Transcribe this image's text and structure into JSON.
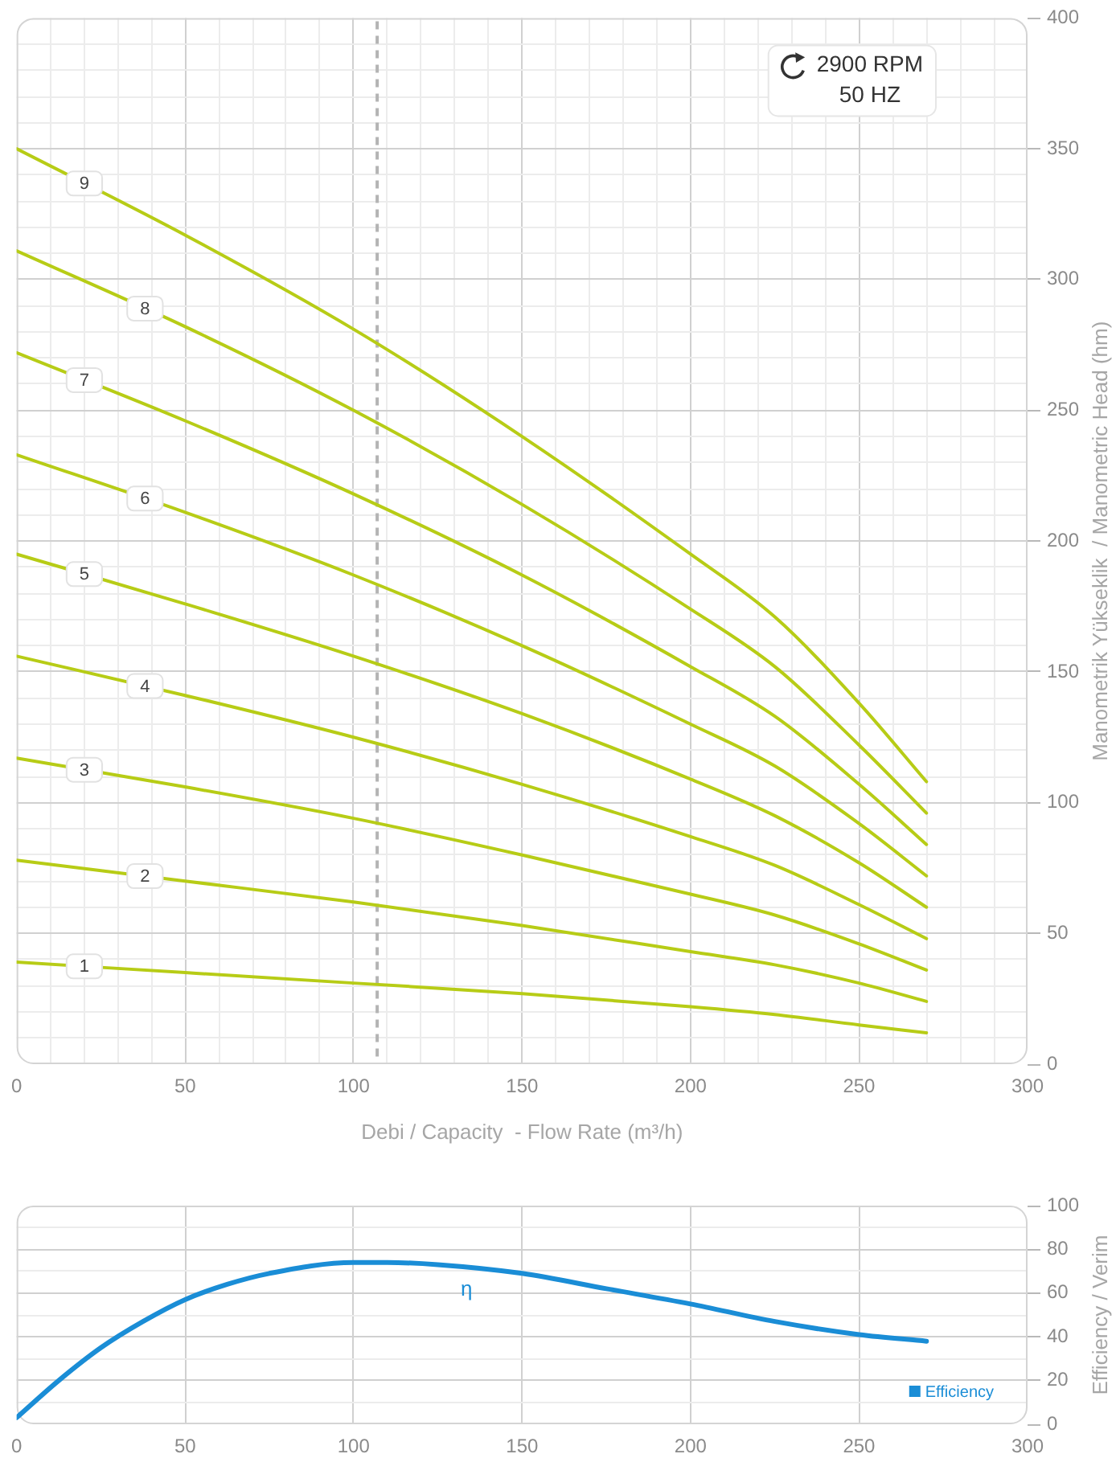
{
  "chart_data": [
    {
      "type": "line",
      "xlabel": "Debi / Capacity  - Flow Rate (m³/h)",
      "ylabel": "Manometrik Yükseklik  / Manometric Head (hm)",
      "x": [
        0,
        50,
        100,
        150,
        200,
        225,
        250,
        270
      ],
      "series": [
        {
          "name": "1",
          "color": "#b7cc16",
          "values": [
            39,
            35,
            31,
            27,
            22,
            19,
            15,
            12
          ]
        },
        {
          "name": "2",
          "color": "#b7cc16",
          "values": [
            78,
            70,
            62,
            53,
            43,
            38,
            31,
            24
          ]
        },
        {
          "name": "3",
          "color": "#b7cc16",
          "values": [
            117,
            106,
            94,
            80,
            65,
            57,
            46,
            36
          ]
        },
        {
          "name": "4",
          "color": "#b7cc16",
          "values": [
            156,
            141,
            125,
            107,
            87,
            76,
            61,
            48
          ]
        },
        {
          "name": "5",
          "color": "#b7cc16",
          "values": [
            195,
            176,
            156,
            134,
            109,
            95,
            77,
            60
          ]
        },
        {
          "name": "6",
          "color": "#b7cc16",
          "values": [
            233,
            211,
            187,
            160,
            130,
            114,
            92,
            72
          ]
        },
        {
          "name": "7",
          "color": "#b7cc16",
          "values": [
            272,
            246,
            218,
            187,
            152,
            133,
            107,
            84
          ]
        },
        {
          "name": "8",
          "color": "#b7cc16",
          "values": [
            311,
            282,
            250,
            214,
            174,
            152,
            122,
            96
          ]
        },
        {
          "name": "9",
          "color": "#b7cc16",
          "values": [
            350,
            317,
            281,
            240,
            195,
            171,
            138,
            108
          ]
        }
      ],
      "xlim": [
        0,
        300
      ],
      "xticks": [
        0,
        {
          "value": 10,
          "label": null
        },
        {
          "value": 20,
          "label": null
        },
        {
          "value": 30,
          "label": null
        },
        {
          "value": 40,
          "label": null
        },
        50,
        {
          "value": 60,
          "label": null
        },
        {
          "value": 70,
          "label": null
        },
        {
          "value": 80,
          "label": null
        },
        {
          "value": 90,
          "label": null
        },
        100,
        {
          "value": 110,
          "label": null
        },
        {
          "value": 120,
          "label": null
        },
        {
          "value": 130,
          "label": null
        },
        {
          "value": 140,
          "label": null
        },
        150,
        {
          "value": 160,
          "label": null
        },
        {
          "value": 170,
          "label": null
        },
        {
          "value": 180,
          "label": null
        },
        {
          "value": 190,
          "label": null
        },
        200,
        {
          "value": 210,
          "label": null
        },
        {
          "value": 220,
          "label": null
        },
        {
          "value": 230,
          "label": null
        },
        {
          "value": 240,
          "label": null
        },
        250,
        {
          "value": 260,
          "label": null
        },
        {
          "value": 270,
          "label": null
        },
        {
          "value": 280,
          "label": null
        },
        {
          "value": 290,
          "label": null
        },
        300
      ],
      "ylim": [
        0,
        400
      ],
      "yticks": [
        0,
        {
          "value": 10,
          "label": null
        },
        {
          "value": 20,
          "label": null
        },
        {
          "value": 30,
          "label": null
        },
        {
          "value": 40,
          "label": null
        },
        50,
        {
          "value": 60,
          "label": null
        },
        {
          "value": 70,
          "label": null
        },
        {
          "value": 80,
          "label": null
        },
        {
          "value": 90,
          "label": null
        },
        100,
        {
          "value": 110,
          "label": null
        },
        {
          "value": 120,
          "label": null
        },
        {
          "value": 130,
          "label": null
        },
        {
          "value": 140,
          "label": null
        },
        150,
        {
          "value": 160,
          "label": null
        },
        {
          "value": 170,
          "label": null
        },
        {
          "value": 180,
          "label": null
        },
        {
          "value": 190,
          "label": null
        },
        200,
        {
          "value": 210,
          "label": null
        },
        {
          "value": 220,
          "label": null
        },
        {
          "value": 230,
          "label": null
        },
        {
          "value": 240,
          "label": null
        },
        250,
        {
          "value": 260,
          "label": null
        },
        {
          "value": 270,
          "label": null
        },
        {
          "value": 280,
          "label": null
        },
        {
          "value": 290,
          "label": null
        },
        300,
        {
          "value": 310,
          "label": null
        },
        {
          "value": 320,
          "label": null
        },
        {
          "value": 330,
          "label": null
        },
        {
          "value": 340,
          "label": null
        },
        350,
        {
          "value": 360,
          "label": null
        },
        {
          "value": 370,
          "label": null
        },
        {
          "value": 380,
          "label": null
        },
        {
          "value": 390,
          "label": null
        },
        400
      ],
      "grid": true,
      "ref_lines": [
        {
          "axis": "x",
          "value": 107,
          "color": "#b4b4b4",
          "line_style": "dashed"
        }
      ],
      "annotations": [
        "2900 RPM",
        "50 HZ"
      ]
    },
    {
      "type": "line",
      "ylabel": "Efficiency / Verim",
      "x": [
        0,
        12.5,
        25,
        37.5,
        50,
        62.5,
        75,
        100,
        110,
        125,
        150,
        175,
        200,
        225,
        250,
        270
      ],
      "series": [
        {
          "name": "Efficiency",
          "color": "#1a8dd6",
          "values": [
            3,
            20,
            35,
            47,
            57,
            64,
            69,
            74,
            74,
            73,
            69,
            62,
            55,
            47,
            41,
            38
          ]
        }
      ],
      "xlim": [
        0,
        300
      ],
      "xticks": [
        0,
        50,
        100,
        150,
        200,
        250,
        300
      ],
      "ylim": [
        0,
        100
      ],
      "yticks": [
        0,
        {
          "value": 10,
          "label": null
        },
        20,
        {
          "value": 30,
          "label": null
        },
        40,
        {
          "value": 50,
          "label": null
        },
        60,
        {
          "value": 70,
          "label": null
        },
        80,
        {
          "value": 90,
          "label": null
        },
        100
      ],
      "grid": true,
      "legend": "bottom right",
      "annotations": [
        "η"
      ]
    }
  ]
}
